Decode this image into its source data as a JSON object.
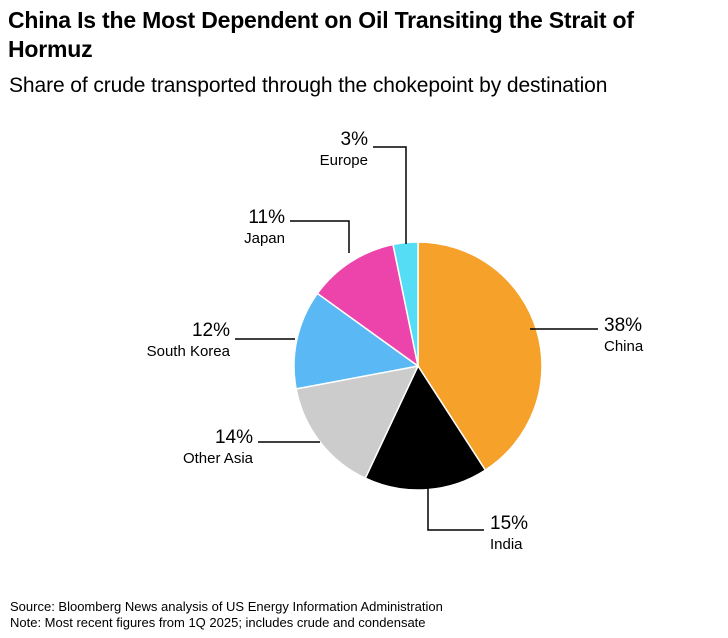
{
  "chart_data": {
    "type": "pie",
    "title": "China Is the Most Dependent on Oil Transiting the Strait of Hormuz",
    "subtitle": "Share of crude transported through the chokepoint by destination",
    "unit": "%",
    "slices": [
      {
        "label": "China",
        "value": 38,
        "display": "38%",
        "color": "#f5a12a"
      },
      {
        "label": "India",
        "value": 15,
        "display": "15%",
        "color": "#000000"
      },
      {
        "label": "Other Asia",
        "value": 14,
        "display": "14%",
        "color": "#cccccc"
      },
      {
        "label": "South Korea",
        "value": 12,
        "display": "12%",
        "color": "#5ab8f5"
      },
      {
        "label": "Japan",
        "value": 11,
        "display": "11%",
        "color": "#ec44ab"
      },
      {
        "label": "Europe",
        "value": 3,
        "display": "3%",
        "color": "#55ddf5"
      }
    ]
  },
  "footer": {
    "source": "Source: Bloomberg News analysis of US Energy Information Administration",
    "note": "Note: Most recent figures from 1Q 2025; includes crude and condensate"
  }
}
